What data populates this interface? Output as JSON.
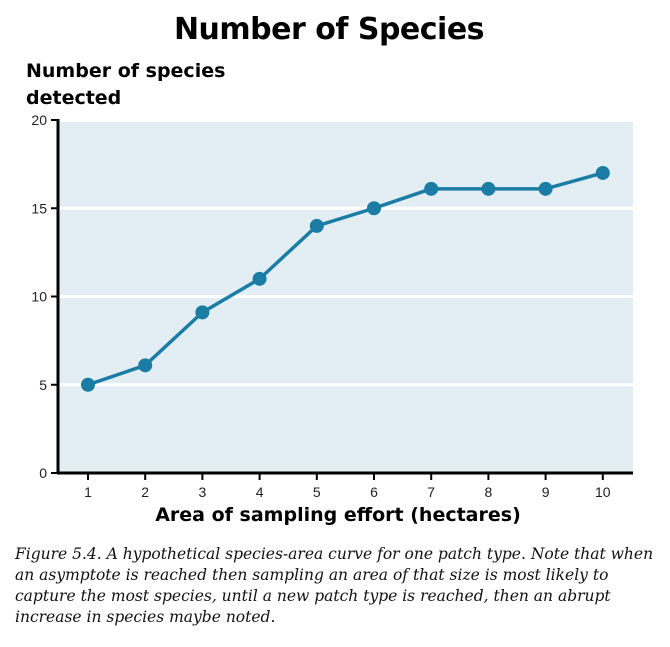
{
  "chart_data": {
    "type": "line",
    "title": "Number of Species",
    "ylabel": "Number of species detected",
    "xlabel": "Area of sampling effort (hectares)",
    "x": [
      1,
      2,
      3,
      4,
      5,
      6,
      7,
      8,
      9,
      10
    ],
    "series": [
      {
        "values": [
          5,
          6.1,
          9.1,
          11,
          14,
          15,
          16.1,
          16.1,
          16.1,
          17
        ]
      }
    ],
    "xlim": [
      0.5,
      10.5
    ],
    "ylim": [
      0,
      20
    ],
    "yticks": [
      0,
      5,
      10,
      15,
      20
    ],
    "xticks": [
      1,
      2,
      3,
      4,
      5,
      6,
      7,
      8,
      9,
      10
    ],
    "grid": "horizontal",
    "colors": {
      "line": "#1b7da6",
      "plot_background": "#e2eef3",
      "grid": "#ffffff",
      "axis": "#000000"
    }
  },
  "caption": "Figure 5.4. A hypothetical species-area curve for one patch type. Note that when an asymptote is reached then sampling an area of that size is most likely to capture the most species, until a new patch type is reached, then an abrupt increase in species maybe noted."
}
